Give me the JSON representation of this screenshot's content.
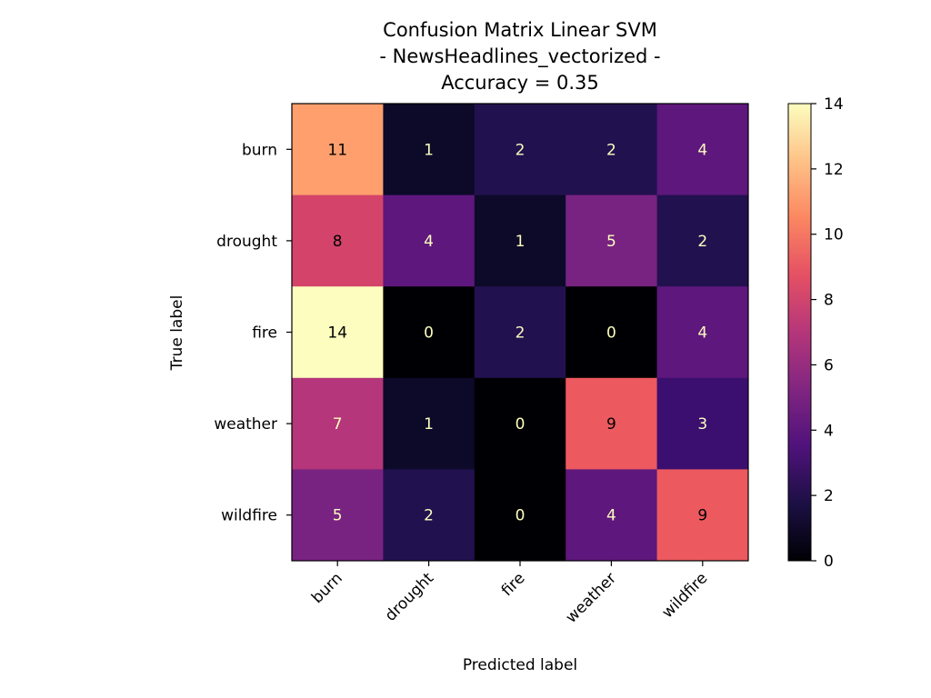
{
  "chart_data": {
    "type": "heatmap",
    "title_lines": [
      "Confusion Matrix Linear SVM",
      "- NewsHeadlines_vectorized -",
      "Accuracy = 0.35"
    ],
    "xlabel": "Predicted label",
    "ylabel": "True label",
    "x_categories": [
      "burn",
      "drought",
      "fire",
      "weather",
      "wildfire"
    ],
    "y_categories": [
      "burn",
      "drought",
      "fire",
      "weather",
      "wildfire"
    ],
    "matrix": [
      [
        11,
        1,
        2,
        2,
        4
      ],
      [
        8,
        4,
        1,
        5,
        2
      ],
      [
        14,
        0,
        2,
        0,
        4
      ],
      [
        7,
        1,
        0,
        9,
        3
      ],
      [
        5,
        2,
        0,
        4,
        9
      ]
    ],
    "colormap": "magma",
    "colorbar": {
      "range": [
        0,
        14
      ],
      "ticks": [
        0,
        2,
        4,
        6,
        8,
        10,
        12,
        14
      ]
    },
    "text_colors": {
      "light": "#fcfdbf",
      "dark": "#000000"
    },
    "grid": false,
    "legend": "colorbar-right"
  }
}
